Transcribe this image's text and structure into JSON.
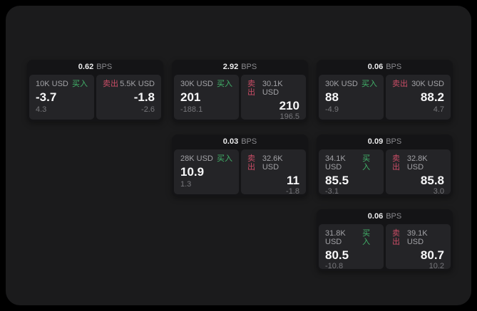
{
  "labels": {
    "bps": "BPS",
    "buy": "买入",
    "sell": "卖出"
  },
  "colors": {
    "buy_green": "#42b36a",
    "sell_red": "#c94d66",
    "surface": "#1b1b1c",
    "card_background": "#141416",
    "panel_background": "#242427"
  },
  "cards": [
    {
      "bps": "0.62",
      "col": 1,
      "row": 1,
      "buy_amount": "10K USD",
      "buy_value": "-3.7",
      "buy_sub": "4.3",
      "sell_amount": "5.5K USD",
      "sell_value": "-1.8",
      "sell_sub": "-2.6"
    },
    {
      "bps": "2.92",
      "col": 2,
      "row": 1,
      "buy_amount": "30K USD",
      "buy_value": "201",
      "buy_sub": "-188.1",
      "sell_amount": "30.1K USD",
      "sell_value": "210",
      "sell_sub": "196.5"
    },
    {
      "bps": "0.06",
      "col": 3,
      "row": 1,
      "buy_amount": "30K USD",
      "buy_value": "88",
      "buy_sub": "-4.9",
      "sell_amount": "30K USD",
      "sell_value": "88.2",
      "sell_sub": "4.7"
    },
    {
      "bps": "0.03",
      "col": 2,
      "row": 2,
      "buy_amount": "28K USD",
      "buy_value": "10.9",
      "buy_sub": "1.3",
      "sell_amount": "32.6K USD",
      "sell_value": "11",
      "sell_sub": "-1.8"
    },
    {
      "bps": "0.09",
      "col": 3,
      "row": 2,
      "buy_amount": "34.1K USD",
      "buy_value": "85.5",
      "buy_sub": "-3.1",
      "sell_amount": "32.8K USD",
      "sell_value": "85.8",
      "sell_sub": "3.0"
    },
    {
      "bps": "0.06",
      "col": 3,
      "row": 3,
      "buy_amount": "31.8K USD",
      "buy_value": "80.5",
      "buy_sub": "-10.8",
      "sell_amount": "39.1K USD",
      "sell_value": "80.7",
      "sell_sub": "10.2"
    }
  ]
}
